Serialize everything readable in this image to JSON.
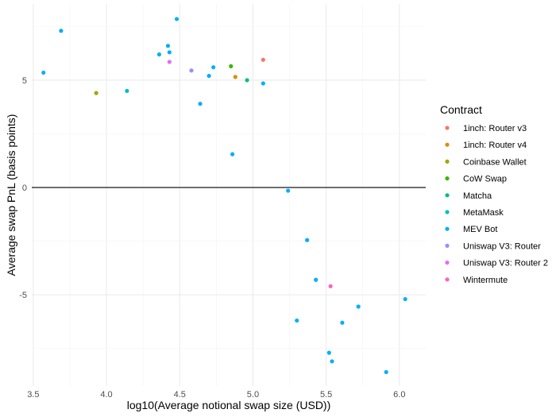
{
  "chart_data": {
    "type": "scatter",
    "xlabel": "log10(Average notional swap size (USD))",
    "ylabel": "Average swap PnL (basis points)",
    "xlim": [
      3.49,
      6.18
    ],
    "ylim": [
      -9.25,
      8.55
    ],
    "x_ticks": [
      "3.5",
      "4.0",
      "4.5",
      "5.0",
      "5.5",
      "6.0"
    ],
    "y_ticks": [
      "-5",
      "0",
      "5"
    ],
    "grid": true,
    "zero_line": true,
    "legend": {
      "title": "Contract",
      "position": "right"
    },
    "series": [
      {
        "name": "1inch: Router v3",
        "color": "#F8766D",
        "points": [
          [
            5.07,
            5.95
          ]
        ]
      },
      {
        "name": "1inch: Router v4",
        "color": "#D89000",
        "points": [
          [
            4.88,
            5.15
          ]
        ]
      },
      {
        "name": "Coinbase Wallet",
        "color": "#A3A500",
        "points": [
          [
            3.93,
            4.4
          ]
        ]
      },
      {
        "name": "CoW Swap",
        "color": "#39B600",
        "points": [
          [
            4.85,
            5.65
          ]
        ]
      },
      {
        "name": "Matcha",
        "color": "#00BF7D",
        "points": [
          [
            4.96,
            5.0
          ]
        ]
      },
      {
        "name": "MetaMask",
        "color": "#00BFC4",
        "points": [
          [
            4.14,
            4.5
          ]
        ]
      },
      {
        "name": "MEV Bot",
        "color": "#00B0F6",
        "points": [
          [
            3.57,
            5.35
          ],
          [
            3.69,
            7.3
          ],
          [
            4.36,
            6.2
          ],
          [
            4.42,
            6.6
          ],
          [
            4.43,
            6.3
          ],
          [
            4.48,
            7.85
          ],
          [
            4.64,
            3.9
          ],
          [
            4.7,
            5.2
          ],
          [
            4.73,
            5.6
          ],
          [
            4.86,
            1.55
          ],
          [
            5.07,
            4.85
          ],
          [
            5.24,
            -0.15
          ],
          [
            5.3,
            -6.2
          ],
          [
            5.37,
            -2.45
          ],
          [
            5.43,
            -4.3
          ],
          [
            5.52,
            -7.7
          ],
          [
            5.54,
            -8.1
          ],
          [
            5.61,
            -6.3
          ],
          [
            5.72,
            -5.55
          ],
          [
            5.91,
            -8.6
          ],
          [
            6.04,
            -5.2
          ]
        ]
      },
      {
        "name": "Uniswap V3: Router",
        "color": "#9590FF",
        "points": [
          [
            4.58,
            5.45
          ]
        ]
      },
      {
        "name": "Uniswap V3: Router 2",
        "color": "#E76BF3",
        "points": [
          [
            4.43,
            5.85
          ]
        ]
      },
      {
        "name": "Wintermute",
        "color": "#FF62BC",
        "points": [
          [
            5.53,
            -4.6
          ]
        ]
      }
    ]
  }
}
